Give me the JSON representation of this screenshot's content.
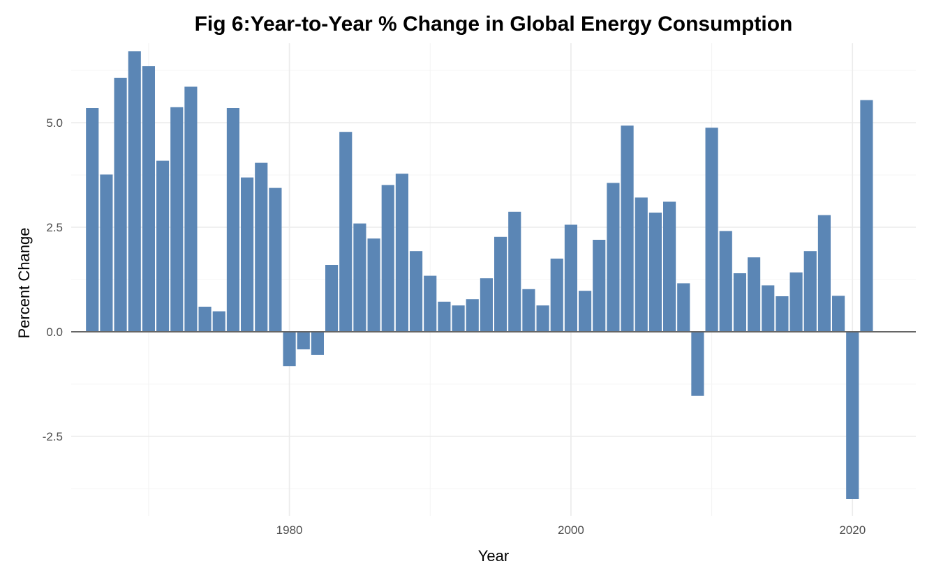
{
  "chart_data": {
    "type": "bar",
    "title": "Fig 6:Year-to-Year % Change in Global Energy Consumption",
    "xlabel": "Year",
    "ylabel": "Percent Change",
    "bar_color": "#5b86b5",
    "zero_line_color": "#666666",
    "grid": true,
    "x_ticks": [
      1980,
      2000,
      2020
    ],
    "y_ticks": [
      -2.5,
      0.0,
      2.5,
      5.0
    ],
    "y_tick_labels": [
      "-2.5",
      "0.0",
      "2.5",
      "5.0"
    ],
    "xlim": [
      1964.5,
      2024.5
    ],
    "ylim": [
      -4.4,
      6.9
    ],
    "x": [
      1966,
      1967,
      1968,
      1969,
      1970,
      1971,
      1972,
      1973,
      1974,
      1975,
      1976,
      1977,
      1978,
      1979,
      1980,
      1981,
      1982,
      1983,
      1984,
      1985,
      1986,
      1987,
      1988,
      1989,
      1990,
      1991,
      1992,
      1993,
      1994,
      1995,
      1996,
      1997,
      1998,
      1999,
      2000,
      2001,
      2002,
      2003,
      2004,
      2005,
      2006,
      2007,
      2008,
      2009,
      2010,
      2011,
      2012,
      2013,
      2014,
      2015,
      2016,
      2017,
      2018,
      2019,
      2020,
      2021
    ],
    "values": [
      5.35,
      3.76,
      6.07,
      6.71,
      6.35,
      4.09,
      5.37,
      5.86,
      0.6,
      0.49,
      5.35,
      3.69,
      4.04,
      3.44,
      -0.82,
      -0.42,
      -0.55,
      1.6,
      4.78,
      2.59,
      2.23,
      3.51,
      3.78,
      1.93,
      1.34,
      0.72,
      0.63,
      0.78,
      1.28,
      2.27,
      2.87,
      1.02,
      0.63,
      1.75,
      2.56,
      0.98,
      2.2,
      3.56,
      4.93,
      3.21,
      2.85,
      3.11,
      1.16,
      -1.53,
      4.88,
      2.41,
      1.4,
      1.78,
      1.11,
      0.85,
      1.42,
      1.93,
      2.79,
      0.86,
      -4.0,
      5.54
    ]
  }
}
